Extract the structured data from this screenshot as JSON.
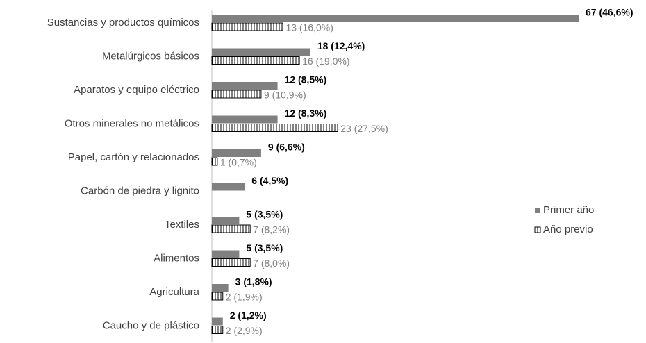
{
  "chart_data": {
    "type": "hbar",
    "categories": [
      "Sustancias y productos químicos",
      "Metalúrgicos básicos",
      "Aparatos y equipo eléctrico",
      "Otros minerales no metálicos",
      "Papel, cartón y relacionados",
      "Carbón de piedra y lignito",
      "Textiles",
      "Alimentos",
      "Agricultura",
      "Caucho y de plástico"
    ],
    "series": [
      {
        "name": "Primer año",
        "color": "#808080",
        "values": [
          67,
          18,
          12,
          12,
          9,
          6,
          5,
          5,
          3,
          2
        ],
        "value_labels": [
          "67 (46,6%)",
          "18 (12,4%)",
          "12 (8,5%)",
          "12 (8,3%)",
          "9 (6,6%)",
          "6 (4,5%)",
          "5 (3,5%)",
          "5 (3,5%)",
          "3 (1,8%)",
          "2 (1,2%)"
        ]
      },
      {
        "name": "Año previo",
        "color": "#000000",
        "values": [
          13,
          16,
          9,
          23,
          1,
          null,
          7,
          7,
          2,
          2
        ],
        "value_labels": [
          "13 (16,0%)",
          "16 (19,0%)",
          "9 (10,9%)",
          "23 (27,5%)",
          "1 (0,7%)",
          null,
          "7 (8,2%)",
          "7 (8,0%)",
          "2 (1,9%)",
          "2 (2,9%)"
        ]
      }
    ],
    "xlim": [
      0,
      67
    ],
    "legend": "right"
  }
}
